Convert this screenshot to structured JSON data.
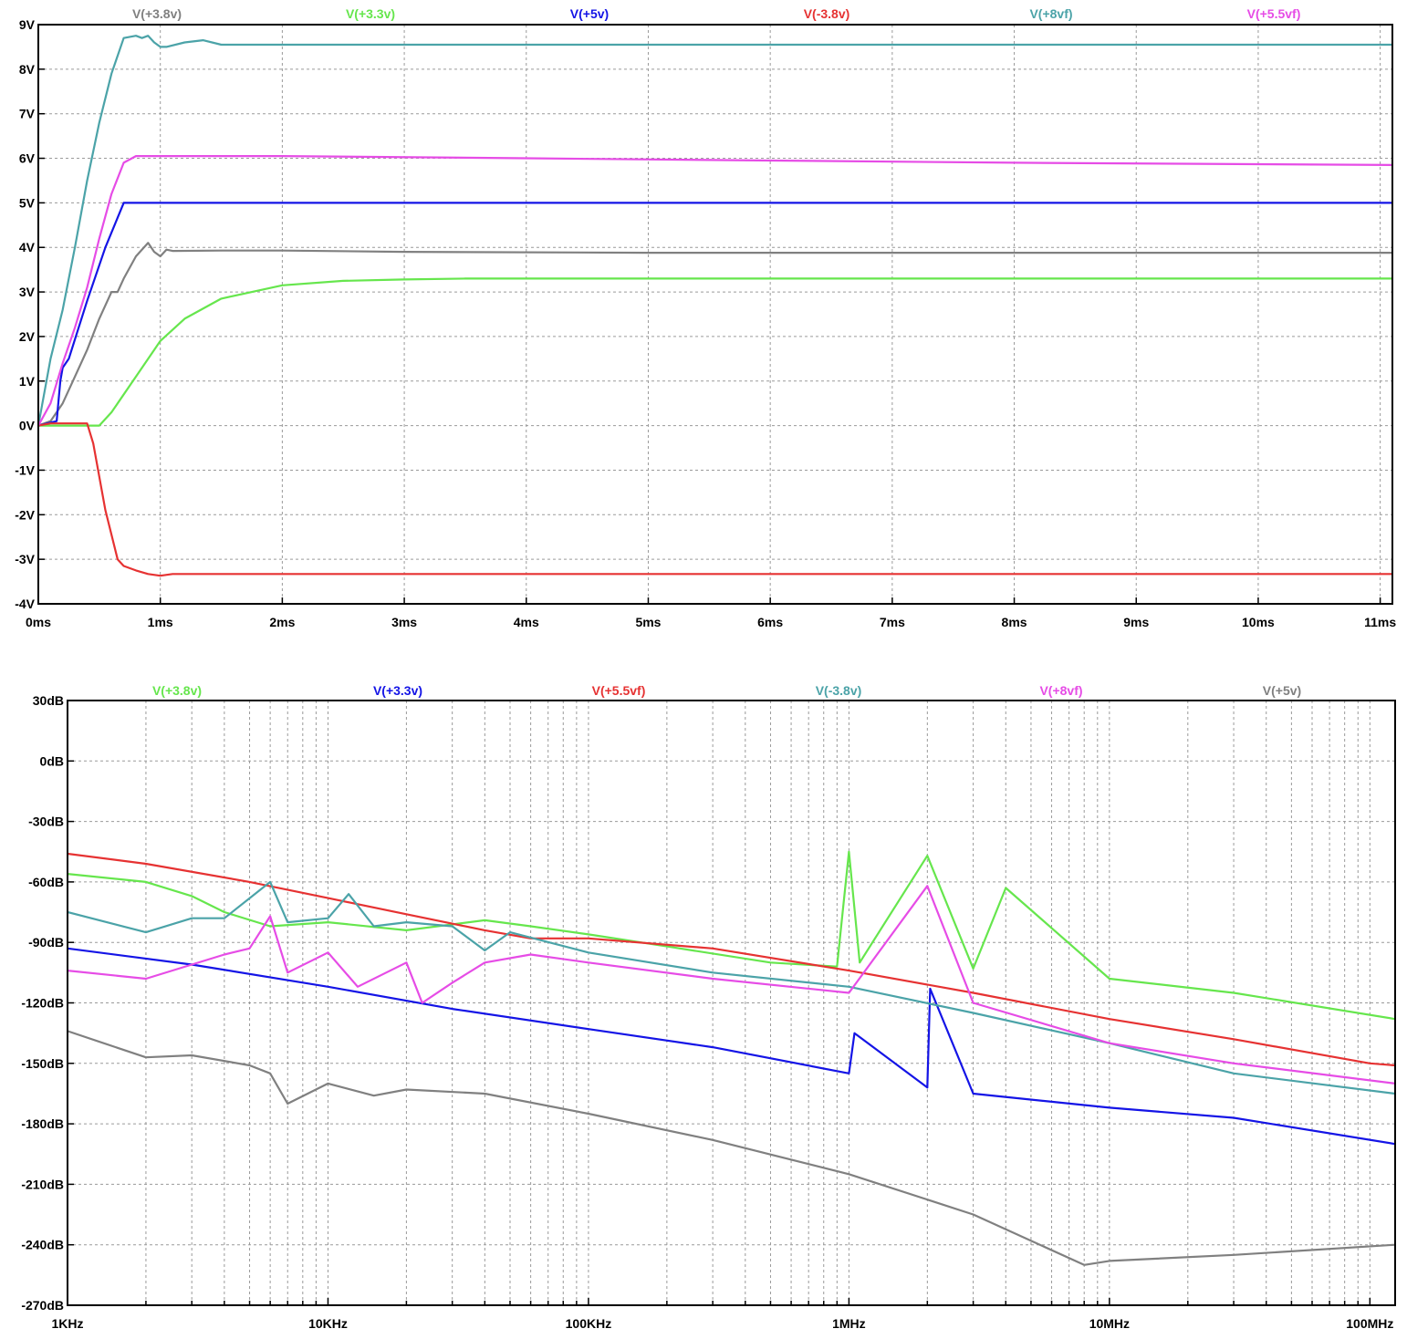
{
  "chart_data": [
    {
      "type": "line",
      "title": "",
      "xlabel": "",
      "ylabel": "",
      "x_unit": "ms",
      "xlim": [
        0,
        11.1
      ],
      "ylim": [
        -4,
        9
      ],
      "grid": true,
      "legend": "top",
      "x_ticks": [
        {
          "v": 0,
          "label": "0ms"
        },
        {
          "v": 1,
          "label": "1ms"
        },
        {
          "v": 2,
          "label": "2ms"
        },
        {
          "v": 3,
          "label": "3ms"
        },
        {
          "v": 4,
          "label": "4ms"
        },
        {
          "v": 5,
          "label": "5ms"
        },
        {
          "v": 6,
          "label": "6ms"
        },
        {
          "v": 7,
          "label": "7ms"
        },
        {
          "v": 8,
          "label": "8ms"
        },
        {
          "v": 9,
          "label": "9ms"
        },
        {
          "v": 10,
          "label": "10ms"
        },
        {
          "v": 11,
          "label": "11ms"
        }
      ],
      "y_ticks": [
        {
          "v": 9,
          "label": "9V"
        },
        {
          "v": 8,
          "label": "8V"
        },
        {
          "v": 7,
          "label": "7V"
        },
        {
          "v": 6,
          "label": "6V"
        },
        {
          "v": 5,
          "label": "5V"
        },
        {
          "v": 4,
          "label": "4V"
        },
        {
          "v": 3,
          "label": "3V"
        },
        {
          "v": 2,
          "label": "2V"
        },
        {
          "v": 1,
          "label": "1V"
        },
        {
          "v": 0,
          "label": "0V"
        },
        {
          "v": -1,
          "label": "-1V"
        },
        {
          "v": -2,
          "label": "-2V"
        },
        {
          "v": -3,
          "label": "-3V"
        },
        {
          "v": -4,
          "label": "-4V"
        }
      ],
      "series": [
        {
          "name": "V(+3.8v)",
          "color": "#808080",
          "x": [
            0,
            0.1,
            0.2,
            0.3,
            0.4,
            0.5,
            0.6,
            0.65,
            0.7,
            0.8,
            0.9,
            0.95,
            1.0,
            1.05,
            1.1,
            1.5,
            2.0,
            3.0,
            5.0,
            8.0,
            11.1
          ],
          "y": [
            0,
            0.1,
            0.5,
            1.1,
            1.7,
            2.4,
            3.0,
            3.0,
            3.3,
            3.8,
            4.1,
            3.9,
            3.8,
            3.95,
            3.92,
            3.93,
            3.93,
            3.9,
            3.88,
            3.88,
            3.88
          ]
        },
        {
          "name": "V(+3.3v)",
          "color": "#66e64d",
          "x": [
            0,
            0.5,
            0.6,
            0.8,
            1.0,
            1.2,
            1.5,
            2.0,
            2.5,
            3.0,
            3.5,
            5.0,
            11.1
          ],
          "y": [
            0,
            0,
            0.3,
            1.1,
            1.9,
            2.4,
            2.85,
            3.15,
            3.25,
            3.28,
            3.3,
            3.3,
            3.3
          ]
        },
        {
          "name": "V(+5v)",
          "color": "#1414e6",
          "x": [
            0,
            0.15,
            0.18,
            0.2,
            0.25,
            0.4,
            0.55,
            0.7,
            0.75,
            1.0,
            11.1
          ],
          "y": [
            0,
            0.1,
            1.0,
            1.3,
            1.5,
            2.8,
            4.0,
            5.0,
            5.0,
            5.0,
            5.0
          ]
        },
        {
          "name": "V(-3.8v)",
          "color": "#e63232",
          "x": [
            0,
            0.1,
            0.4,
            0.45,
            0.55,
            0.65,
            0.7,
            0.8,
            0.9,
            1.0,
            1.1,
            2.0,
            11.1
          ],
          "y": [
            0,
            0.05,
            0.05,
            -0.4,
            -1.9,
            -3.0,
            -3.15,
            -3.25,
            -3.33,
            -3.37,
            -3.33,
            -3.33,
            -3.33
          ]
        },
        {
          "name": "V(+8vf)",
          "color": "#4ba3a8",
          "x": [
            0,
            0.1,
            0.2,
            0.3,
            0.4,
            0.5,
            0.6,
            0.7,
            0.8,
            0.85,
            0.9,
            0.95,
            1.0,
            1.05,
            1.2,
            1.35,
            1.5,
            3.0,
            11.1
          ],
          "y": [
            0,
            1.5,
            2.6,
            4.0,
            5.5,
            6.8,
            7.9,
            8.7,
            8.75,
            8.7,
            8.75,
            8.6,
            8.5,
            8.5,
            8.6,
            8.65,
            8.55,
            8.55,
            8.55
          ]
        },
        {
          "name": "V(+5.5vf)",
          "color": "#e64ce6",
          "x": [
            0,
            0.1,
            0.2,
            0.3,
            0.4,
            0.5,
            0.6,
            0.7,
            0.8,
            0.9,
            1.0,
            2.0,
            4.0,
            6.0,
            8.0,
            11.1
          ],
          "y": [
            0,
            0.5,
            1.4,
            2.2,
            3.1,
            4.2,
            5.2,
            5.9,
            6.05,
            6.05,
            6.05,
            6.05,
            6.0,
            5.95,
            5.9,
            5.85
          ]
        }
      ]
    },
    {
      "type": "line",
      "title": "",
      "xlabel": "",
      "ylabel": "",
      "x_scale": "log",
      "x_unit": "Hz",
      "xlim": [
        1000,
        125000000
      ],
      "ylim": [
        -270,
        30
      ],
      "grid": true,
      "legend": "top",
      "x_ticks": [
        {
          "v": 1000,
          "label": "1KHz"
        },
        {
          "v": 10000,
          "label": "10KHz"
        },
        {
          "v": 100000,
          "label": "100KHz"
        },
        {
          "v": 1000000,
          "label": "1MHz"
        },
        {
          "v": 10000000,
          "label": "10MHz"
        },
        {
          "v": 100000000,
          "label": "100MHz"
        }
      ],
      "y_ticks": [
        {
          "v": 30,
          "label": "30dB"
        },
        {
          "v": 0,
          "label": "0dB"
        },
        {
          "v": -30,
          "label": "-30dB"
        },
        {
          "v": -60,
          "label": "-60dB"
        },
        {
          "v": -90,
          "label": "-90dB"
        },
        {
          "v": -120,
          "label": "-120dB"
        },
        {
          "v": -150,
          "label": "-150dB"
        },
        {
          "v": -180,
          "label": "-180dB"
        },
        {
          "v": -210,
          "label": "-210dB"
        },
        {
          "v": -240,
          "label": "-240dB"
        },
        {
          "v": -270,
          "label": "-270dB"
        }
      ],
      "series": [
        {
          "name": "V(+3.8v)",
          "color": "#66e64d",
          "x": [
            1000,
            2000,
            3000,
            4000,
            6000,
            10000,
            20000,
            40000,
            60000,
            100000,
            200000,
            500000,
            900000,
            1000000,
            1100000,
            2000000,
            3000000,
            4000000,
            10000000,
            30000000,
            125000000
          ],
          "y": [
            -56,
            -60,
            -67,
            -75,
            -82,
            -80,
            -84,
            -79,
            -82,
            -86,
            -92,
            -100,
            -102,
            -45,
            -100,
            -47,
            -103,
            -63,
            -108,
            -115,
            -128
          ]
        },
        {
          "name": "V(+3.3v)",
          "color": "#1414e6",
          "x": [
            1000,
            3000,
            10000,
            30000,
            100000,
            300000,
            1000000,
            1050000,
            2000000,
            2050000,
            3000000,
            10000000,
            30000000,
            125000000
          ],
          "y": [
            -93,
            -101,
            -112,
            -123,
            -133,
            -142,
            -155,
            -135,
            -162,
            -113,
            -165,
            -172,
            -177,
            -190
          ]
        },
        {
          "name": "V(+5.5vf)",
          "color": "#e63232",
          "x": [
            1000,
            2000,
            5000,
            10000,
            20000,
            40000,
            60000,
            100000,
            300000,
            1000000,
            3000000,
            10000000,
            30000000,
            100000000,
            125000000
          ],
          "y": [
            -46,
            -51,
            -60,
            -68,
            -76,
            -84,
            -88,
            -88,
            -93,
            -104,
            -115,
            -128,
            -138,
            -150,
            -151
          ]
        },
        {
          "name": "V(-3.8v)",
          "color": "#4ba3a8",
          "x": [
            1000,
            2000,
            3000,
            4000,
            6000,
            7000,
            10000,
            12000,
            15000,
            20000,
            30000,
            40000,
            50000,
            100000,
            300000,
            1000000,
            3000000,
            10000000,
            30000000,
            125000000
          ],
          "y": [
            -75,
            -85,
            -78,
            -78,
            -60,
            -80,
            -78,
            -66,
            -82,
            -80,
            -82,
            -94,
            -85,
            -95,
            -105,
            -112,
            -125,
            -140,
            -155,
            -165
          ]
        },
        {
          "name": "V(+8vf)",
          "color": "#e64ce6",
          "x": [
            1000,
            2000,
            4000,
            5000,
            6000,
            7000,
            10000,
            13000,
            20000,
            23000,
            30000,
            40000,
            60000,
            100000,
            300000,
            1000000,
            2000000,
            3000000,
            10000000,
            30000000,
            125000000
          ],
          "y": [
            -104,
            -108,
            -96,
            -93,
            -77,
            -105,
            -95,
            -112,
            -100,
            -120,
            -110,
            -100,
            -96,
            -100,
            -108,
            -115,
            -62,
            -120,
            -140,
            -150,
            -160
          ]
        },
        {
          "name": "V(+5v)",
          "color": "#808080",
          "x": [
            1000,
            2000,
            3000,
            5000,
            6000,
            7000,
            10000,
            15000,
            20000,
            40000,
            100000,
            300000,
            1000000,
            3000000,
            8000000,
            10000000,
            30000000,
            125000000
          ],
          "y": [
            -134,
            -147,
            -146,
            -151,
            -155,
            -170,
            -160,
            -166,
            -163,
            -165,
            -175,
            -188,
            -205,
            -225,
            -250,
            -248,
            -245,
            -240
          ]
        }
      ]
    }
  ]
}
